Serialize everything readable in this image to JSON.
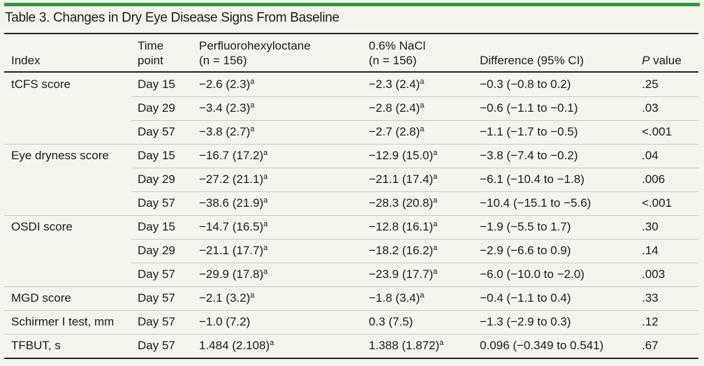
{
  "title": "Table 3. Changes in Dry Eye Disease Signs From Baseline",
  "accent_color": "#2f9a3b",
  "headers": {
    "index": "Index",
    "time_line1": "Time",
    "time_line2": "point",
    "perf_line1": "Perfluorohexyloctane",
    "perf_line2": "(n = 156)",
    "nacl_line1": "0.6% NaCl",
    "nacl_line2": "(n = 156)",
    "difference": "Difference (95% CI)",
    "p_italic": "P",
    "p_rest": " value"
  },
  "footnote_marker": "a",
  "rows": [
    {
      "index": "tCFS score",
      "time": "Day 15",
      "perf": "−2.6 (2.3)",
      "perf_sup": true,
      "nacl": "−2.3 (2.4)",
      "nacl_sup": true,
      "diff": "−0.3 (−0.8 to 0.2)",
      "p": ".25"
    },
    {
      "index": "",
      "time": "Day 29",
      "perf": "−3.4 (2.3)",
      "perf_sup": true,
      "nacl": "−2.8 (2.4)",
      "nacl_sup": true,
      "diff": "−0.6 (−1.1 to −0.1)",
      "p": ".03"
    },
    {
      "index": "",
      "time": "Day 57",
      "perf": "−3.8 (2.7)",
      "perf_sup": true,
      "nacl": "−2.7 (2.8)",
      "nacl_sup": true,
      "diff": "−1.1 (−1.7 to −0.5)",
      "p": "<.001"
    },
    {
      "index": "Eye dryness score",
      "time": "Day 15",
      "perf": "−16.7 (17.2)",
      "perf_sup": true,
      "nacl": "−12.9 (15.0)",
      "nacl_sup": true,
      "diff": "−3.8 (−7.4 to −0.2)",
      "p": ".04"
    },
    {
      "index": "",
      "time": "Day 29",
      "perf": "−27.2 (21.1)",
      "perf_sup": true,
      "nacl": "−21.1 (17.4)",
      "nacl_sup": true,
      "diff": "−6.1 (−10.4 to −1.8)",
      "p": ".006"
    },
    {
      "index": "",
      "time": "Day 57",
      "perf": "−38.6 (21.9)",
      "perf_sup": true,
      "nacl": "−28.3 (20.8)",
      "nacl_sup": true,
      "diff": "−10.4 (−15.1 to −5.6)",
      "p": "<.001"
    },
    {
      "index": "OSDI score",
      "time": "Day 15",
      "perf": "−14.7 (16.5)",
      "perf_sup": true,
      "nacl": "−12.8 (16.1)",
      "nacl_sup": true,
      "diff": "−1.9 (−5.5 to 1.7)",
      "p": ".30"
    },
    {
      "index": "",
      "time": "Day 29",
      "perf": "−21.1 (17.7)",
      "perf_sup": true,
      "nacl": "−18.2 (16.2)",
      "nacl_sup": true,
      "diff": "−2.9 (−6.6 to 0.9)",
      "p": ".14"
    },
    {
      "index": "",
      "time": "Day 57",
      "perf": "−29.9 (17.8)",
      "perf_sup": true,
      "nacl": "−23.9 (17.7)",
      "nacl_sup": true,
      "diff": "−6.0 (−10.0 to −2.0)",
      "p": ".003"
    },
    {
      "index": "MGD score",
      "time": "Day 57",
      "perf": "−2.1 (3.2)",
      "perf_sup": true,
      "nacl": "−1.8 (3.4)",
      "nacl_sup": true,
      "diff": "−0.4 (−1.1 to 0.4)",
      "p": ".33"
    },
    {
      "index": "Schirmer I test, mm",
      "time": "Day 57",
      "perf": "−1.0 (7.2)",
      "perf_sup": false,
      "nacl": "0.3 (7.5)",
      "nacl_sup": false,
      "diff": "−1.3 (−2.9 to 0.3)",
      "p": ".12"
    },
    {
      "index": "TFBUT, s",
      "time": "Day 57",
      "perf": "1.484 (2.108)",
      "perf_sup": true,
      "nacl": "1.388 (1.872)",
      "nacl_sup": true,
      "diff": "0.096 (−0.349 to 0.541)",
      "p": ".67"
    }
  ]
}
